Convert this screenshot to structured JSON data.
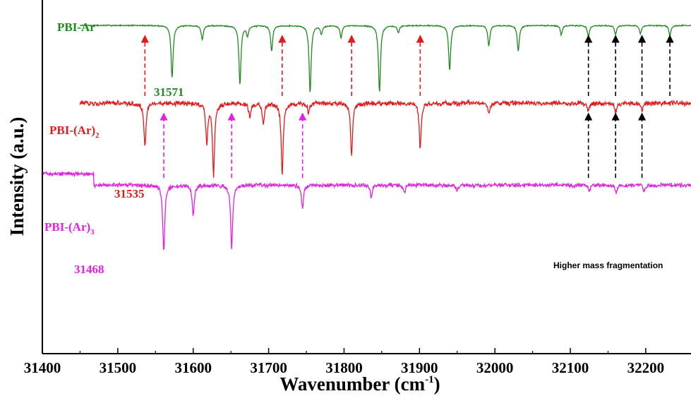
{
  "chart_data": {
    "type": "line",
    "xlabel": "Wavenumber (cm",
    "xlabel_sup": "-1",
    "xlabel_end": ")",
    "ylabel": "Intensity (a.u.)",
    "xlim": [
      31400,
      32260
    ],
    "x_ticks": [
      "31400",
      "31500",
      "31600",
      "31700",
      "31800",
      "31900",
      "32000",
      "32100",
      "32200"
    ],
    "series": [
      {
        "name": "PBI-Ar",
        "label_main": "PBI-Ar",
        "label_sub": "",
        "color": "#1e8a1e",
        "x_start": 31450,
        "baseline": 0.0,
        "noise": 0.022,
        "dips": [
          [
            31572,
            2.55
          ],
          [
            31612,
            0.7
          ],
          [
            31662,
            2.9
          ],
          [
            31672,
            0.5
          ],
          [
            31704,
            1.25
          ],
          [
            31755,
            3.3
          ],
          [
            31770,
            0.4
          ],
          [
            31796,
            0.6
          ],
          [
            31847,
            3.3
          ],
          [
            31872,
            0.35
          ],
          [
            31940,
            2.2
          ],
          [
            31992,
            1.0
          ],
          [
            32031,
            1.25
          ],
          [
            32088,
            0.45
          ],
          [
            32124,
            0.55
          ],
          [
            32160,
            0.45
          ],
          [
            32193,
            0.4
          ],
          [
            32232,
            0.5
          ]
        ],
        "annotations": [
          {
            "text": "31571",
            "x": 31571
          }
        ]
      },
      {
        "name": "PBI-(Ar)2",
        "label_main": "PBI-(Ar)",
        "label_sub": "2",
        "color": "#e41a1a",
        "x_start": 31450,
        "baseline": -3.8,
        "noise": 0.09,
        "dips": [
          [
            31536,
            2.2
          ],
          [
            31618,
            1.9
          ],
          [
            31627,
            3.5
          ],
          [
            31675,
            0.7
          ],
          [
            31693,
            1.0
          ],
          [
            31718,
            3.45
          ],
          [
            31753,
            0.5
          ],
          [
            31810,
            2.6
          ],
          [
            31901,
            2.2
          ],
          [
            31992,
            0.5
          ],
          [
            32124,
            0.4
          ],
          [
            32160,
            0.45
          ],
          [
            32195,
            0.35
          ]
        ],
        "annotations": [
          {
            "text": "31535",
            "x": 31535
          }
        ]
      },
      {
        "name": "PBI-(Ar)3",
        "label_main": "PBI-(Ar)",
        "label_sub": "3",
        "color": "#e321e3",
        "x_start": 31400,
        "baseline": -7.8,
        "noise": 0.08,
        "step": [
          31468,
          0.55
        ],
        "dips": [
          [
            31561,
            3.25
          ],
          [
            31600,
            1.5
          ],
          [
            31651,
            3.1
          ],
          [
            31745,
            1.15
          ],
          [
            31836,
            0.6
          ],
          [
            31880,
            0.4
          ],
          [
            31950,
            0.3
          ],
          [
            32125,
            0.3
          ],
          [
            32161,
            0.35
          ],
          [
            32198,
            0.3
          ]
        ],
        "annotations": [
          {
            "text": "31468",
            "x": 31468
          }
        ]
      }
    ],
    "arrows": [
      {
        "series": "PBI-Ar",
        "color": "#e41a1a",
        "x": [
          31536,
          31718,
          31810,
          31901
        ]
      },
      {
        "series": "PBI-Ar",
        "color": "#000000",
        "x": [
          32124,
          32160,
          32195,
          32232
        ]
      },
      {
        "series": "PBI-(Ar)3",
        "color": "#e321e3",
        "x": [
          31561,
          31651,
          31745
        ]
      },
      {
        "series": "PBI-(Ar)3",
        "color": "#000000",
        "x": [
          32124,
          32160,
          32195
        ]
      }
    ],
    "note": "Higher mass fragmentation"
  }
}
